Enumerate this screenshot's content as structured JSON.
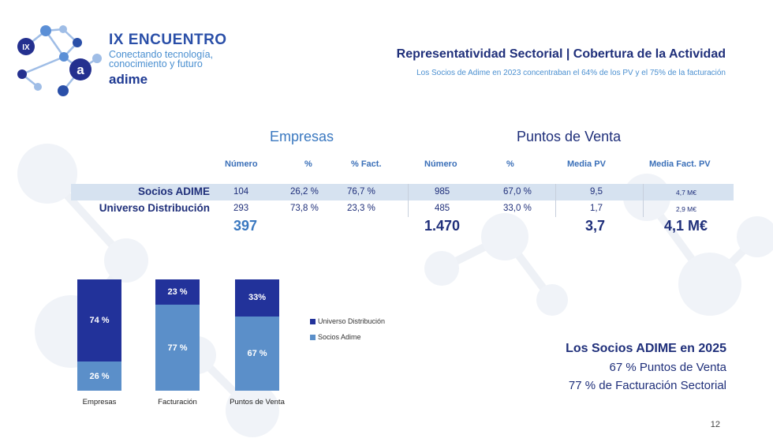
{
  "colors": {
    "dark_blue": "#22329a",
    "light_blue": "#5b8fc9",
    "navy_text": "#1f2f7a",
    "accent_blue": "#3a78c0",
    "band": "#d6e2f0"
  },
  "logo": {
    "mark_text": "IX",
    "badge_text": "a",
    "title": "IX ENCUENTRO",
    "subtitle_line1": "Conectando tecnología,",
    "subtitle_line2": "conocimiento y futuro",
    "brand": "adime"
  },
  "header": {
    "title": "Representatividad Sectorial | Cobertura de la Actividad",
    "subtitle": "Los Socios de Adime en 2023 concentraban el 64% de los PV y el 75% de la facturación"
  },
  "table": {
    "group_empresas": "Empresas",
    "group_pv": "Puntos de Venta",
    "headers": [
      "Número",
      "%",
      "% Fact.",
      "Número",
      "%",
      "Media PV",
      "Media Fact. PV"
    ],
    "rows": [
      {
        "label": "Socios ADIME",
        "values": [
          "104",
          "26,2 %",
          "76,7 %",
          "985",
          "67,0 %",
          "9,5",
          "4,7 M€"
        ]
      },
      {
        "label": "Universo Distribución",
        "values": [
          "293",
          "73,8 %",
          "23,3 %",
          "485",
          "33,0 %",
          "1,7",
          "2,9 M€"
        ]
      }
    ],
    "totals": {
      "empresas": "397",
      "pv": "1.470",
      "media_pv": "3,7",
      "media_fact": "4,1 M€"
    }
  },
  "chart_data": {
    "type": "bar",
    "stacked": true,
    "categories": [
      "Empresas",
      "Facturación",
      "Puntos de Venta"
    ],
    "series": [
      {
        "name": "Socios Adime",
        "values": [
          26,
          77,
          67
        ],
        "labels": [
          "26 %",
          "77 %",
          "67 %"
        ],
        "color": "#5b8fc9"
      },
      {
        "name": "Universo Distribución",
        "values": [
          74,
          23,
          33
        ],
        "labels": [
          "74 %",
          "23 %",
          "33%"
        ],
        "color": "#22329a"
      }
    ],
    "legend": [
      "Universo Distribución",
      "Socios Adime"
    ],
    "legend_position": "right",
    "ylim": [
      0,
      100
    ],
    "grid": false
  },
  "summary": {
    "title": "Los Socios ADIME en 2025",
    "line1": "67 % Puntos de Venta",
    "line2": "77 % de Facturación Sectorial"
  },
  "page_number": "12"
}
